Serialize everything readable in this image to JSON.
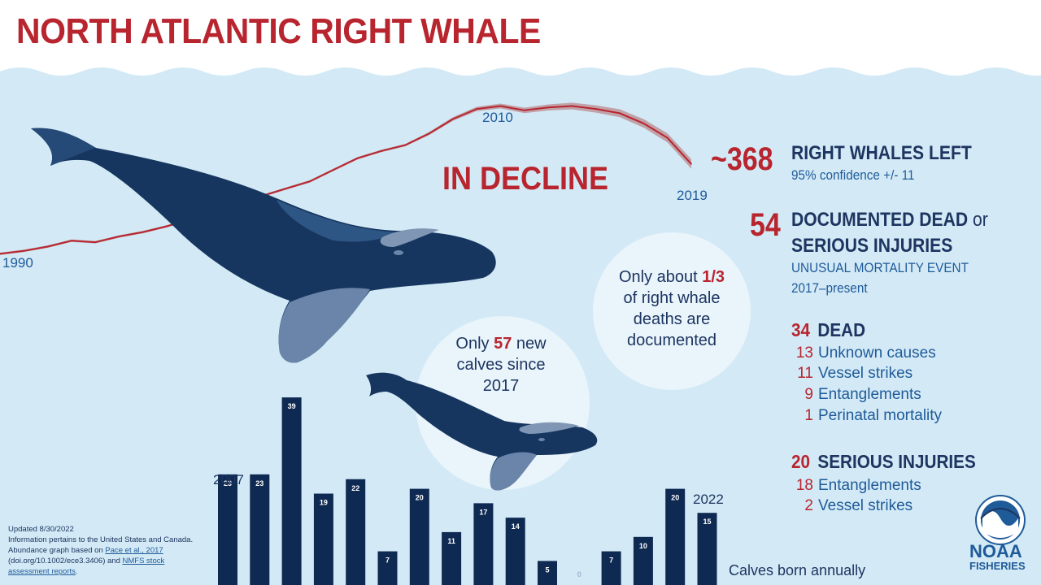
{
  "title": "NORTH ATLANTIC RIGHT WHALE",
  "decline_label": "IN DECLINE",
  "colors": {
    "red": "#b8252f",
    "navy": "#1d3560",
    "water": "#d3eaf6",
    "bar": "#0f2a52"
  },
  "stats": {
    "left_value": "~368",
    "left_label": "RIGHT WHALES LEFT",
    "left_note": "95% confidence +/- 11",
    "ume_value": "54",
    "ume_label_1": "DOCUMENTED DEAD",
    "ume_or": "or",
    "ume_label_2": "SERIOUS INJURIES",
    "ume_note_1": "UNUSUAL MORTALITY EVENT",
    "ume_note_2": "2017–present",
    "dead_value": "34",
    "dead_label": "DEAD",
    "dead_items": [
      {
        "n": "13",
        "label": "Unknown causes"
      },
      {
        "n": "11",
        "label": "Vessel strikes"
      },
      {
        "n": "9",
        "label": "Entanglements"
      },
      {
        "n": "1",
        "label": "Perinatal mortality"
      }
    ],
    "injury_value": "20",
    "injury_label": "SERIOUS INJURIES",
    "injury_items": [
      {
        "n": "18",
        "label": "Entanglements"
      },
      {
        "n": "2",
        "label": "Vessel strikes"
      }
    ]
  },
  "bubbles": {
    "documented_1": "Only about",
    "documented_frac": "1/3",
    "documented_2": "of right whale",
    "documented_3": "deaths are",
    "documented_4": "documented",
    "calves_1": "Only",
    "calves_num": "57",
    "calves_2": "new",
    "calves_3": "calves since",
    "calves_4": "2017"
  },
  "footer": {
    "updated": "Updated 8/30/2022",
    "info": "Information pertains to the United States and Canada.",
    "source_1": "Abundance graph based on",
    "source_link_1": "Pace et al., 2017",
    "source_2": "(doi.org/10.1002/ece3.3406) and",
    "source_link_2": "NMFS stock",
    "source_link_3": "assessment reports",
    "source_end": "."
  },
  "logo": {
    "line1": "NOAA",
    "line2": "FISHERIES"
  },
  "chart_data": [
    {
      "type": "line",
      "title": "",
      "x_labels": {
        "start": "1990",
        "mid": "2010",
        "end": "2019"
      },
      "x": [
        1990,
        1991,
        1992,
        1993,
        1994,
        1995,
        1996,
        1997,
        1998,
        1999,
        2000,
        2001,
        2002,
        2003,
        2004,
        2005,
        2006,
        2007,
        2008,
        2009,
        2010,
        2011,
        2012,
        2013,
        2014,
        2015,
        2016,
        2017,
        2018,
        2019
      ],
      "series": [
        {
          "values": [
            266,
            268,
            271,
            275,
            274,
            278,
            281,
            285,
            290,
            295,
            300,
            306,
            311,
            316,
            324,
            332,
            337,
            341,
            349,
            359,
            366,
            368,
            365,
            367,
            368,
            366,
            363,
            356,
            346,
            328
          ]
        }
      ],
      "has_confidence_band": true,
      "ylim": [
        255,
        375
      ]
    },
    {
      "type": "bar",
      "title": "Calves born annually",
      "x_labels": {
        "start": "2007",
        "end": "2022"
      },
      "categories": [
        "2007",
        "2008",
        "2009",
        "2010",
        "2011",
        "2012",
        "2013",
        "2014",
        "2015",
        "2016",
        "2017",
        "2018",
        "2019",
        "2020",
        "2021",
        "2022"
      ],
      "values": [
        23,
        23,
        39,
        19,
        22,
        7,
        20,
        11,
        17,
        14,
        5,
        0,
        7,
        10,
        20,
        15
      ],
      "ylim": [
        0,
        40
      ]
    }
  ]
}
